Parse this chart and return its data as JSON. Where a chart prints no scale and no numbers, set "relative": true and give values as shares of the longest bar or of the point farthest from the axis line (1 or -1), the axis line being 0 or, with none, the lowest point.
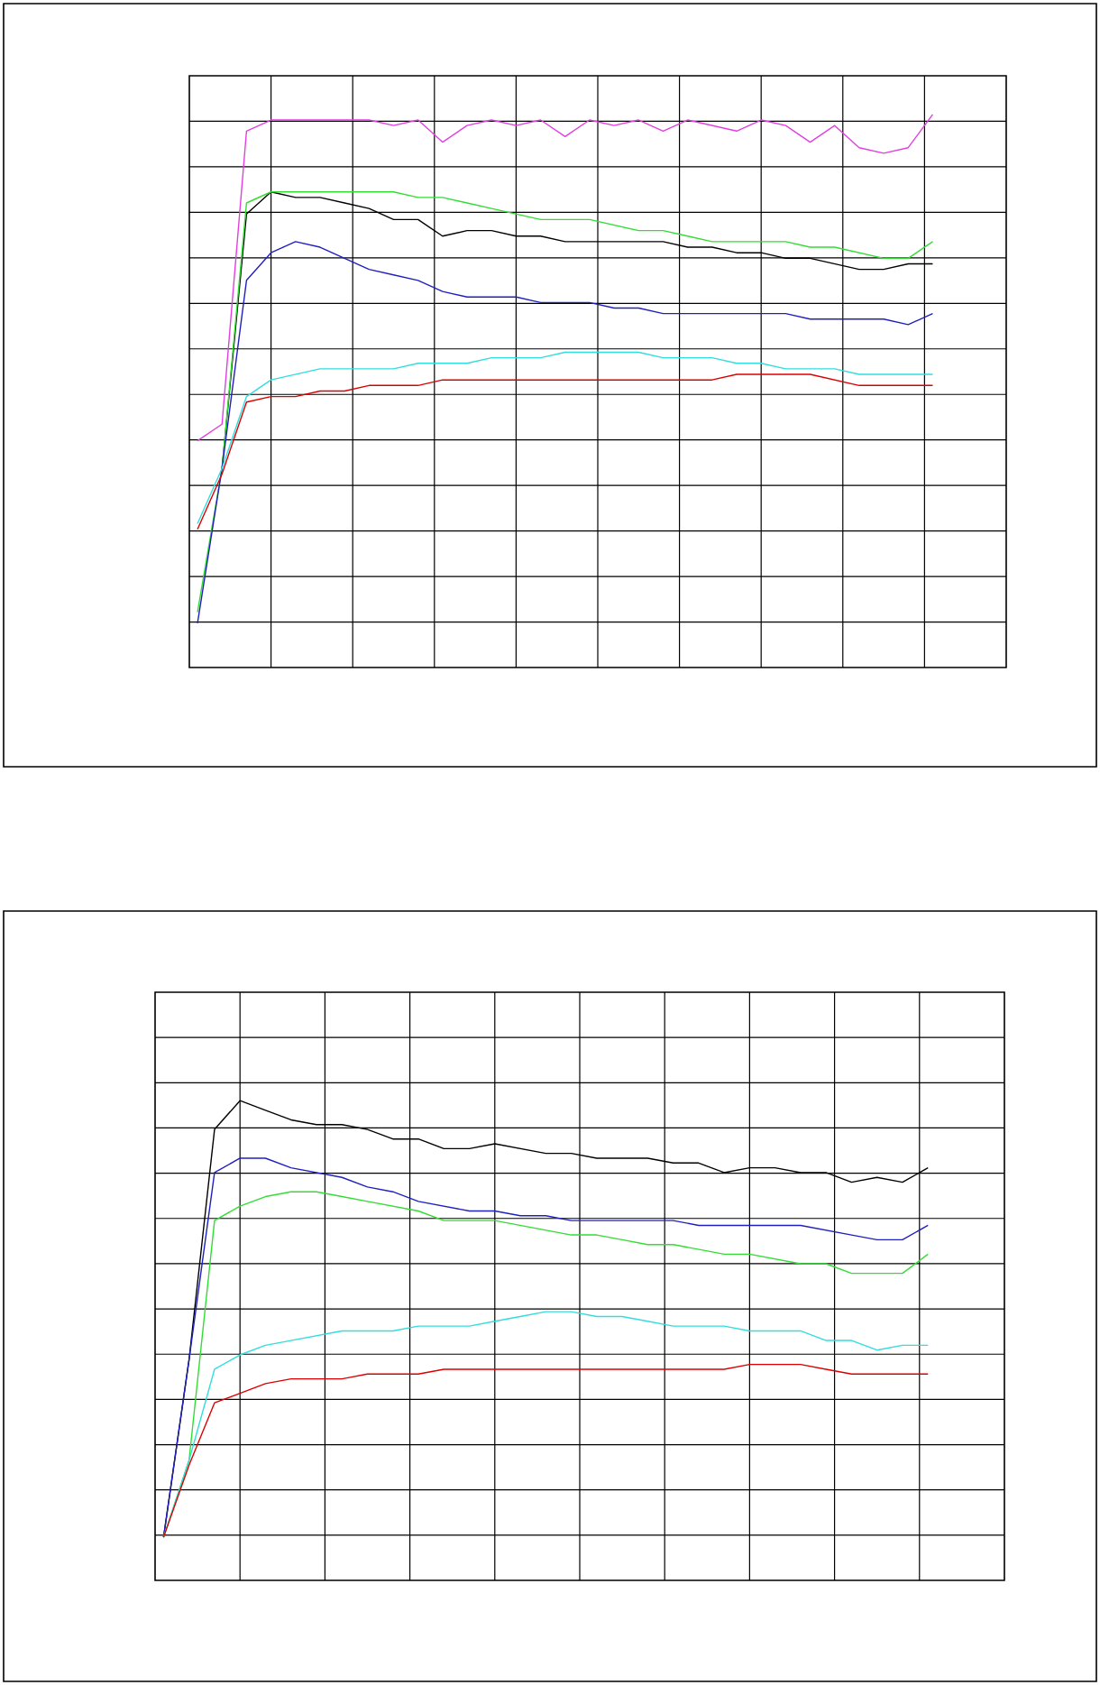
{
  "chart_data": [
    {
      "type": "line",
      "relative": true,
      "grid": true,
      "marker": "none",
      "line_style": "solid",
      "tick_labels": false,
      "categories": [
        null,
        null,
        null,
        null,
        null,
        null,
        null,
        null,
        null,
        null,
        null,
        null,
        null,
        null,
        null,
        null,
        null,
        null,
        null,
        null,
        null,
        null,
        null,
        null,
        null,
        null,
        null,
        null,
        null,
        null,
        null
      ],
      "series": [
        {
          "color": "#e040e0",
          "values": [
            0.41,
            0.44,
            0.97,
            0.99,
            0.99,
            0.99,
            0.99,
            0.99,
            0.98,
            0.99,
            0.95,
            0.98,
            0.99,
            0.98,
            0.99,
            0.96,
            0.99,
            0.98,
            0.99,
            0.97,
            0.99,
            0.98,
            0.97,
            0.99,
            0.98,
            0.95,
            0.98,
            0.94,
            0.93,
            0.94,
            1
          ]
        },
        {
          "color": "#000000",
          "values": [
            null,
            0.36,
            0.82,
            0.86,
            0.85,
            0.85,
            0.84,
            0.83,
            0.81,
            0.81,
            0.78,
            0.79,
            0.79,
            0.78,
            0.78,
            0.77,
            0.77,
            0.77,
            0.77,
            0.77,
            0.76,
            0.76,
            0.75,
            0.75,
            0.74,
            0.74,
            0.73,
            0.72,
            0.72,
            0.73,
            0.73
          ]
        },
        {
          "color": "#33dd33",
          "values": [
            0.1,
            0.36,
            0.84,
            0.86,
            0.86,
            0.86,
            0.86,
            0.86,
            0.86,
            0.85,
            0.85,
            0.84,
            0.83,
            0.82,
            0.81,
            0.81,
            0.81,
            0.8,
            0.79,
            0.79,
            0.78,
            0.77,
            0.77,
            0.77,
            0.77,
            0.76,
            0.76,
            0.75,
            0.74,
            0.74,
            0.77
          ]
        },
        {
          "color": "#2020c0",
          "values": [
            0.08,
            0.36,
            0.7,
            0.75,
            0.77,
            0.76,
            0.74,
            0.72,
            0.71,
            0.7,
            0.68,
            0.67,
            0.67,
            0.67,
            0.66,
            0.66,
            0.66,
            0.65,
            0.65,
            0.64,
            0.64,
            0.64,
            0.64,
            0.64,
            0.64,
            0.63,
            0.63,
            0.63,
            0.63,
            0.62,
            0.64
          ]
        },
        {
          "color": "#33dddd",
          "values": [
            0.26,
            0.36,
            0.49,
            0.52,
            0.53,
            0.54,
            0.54,
            0.54,
            0.54,
            0.55,
            0.55,
            0.55,
            0.56,
            0.56,
            0.56,
            0.57,
            0.57,
            0.57,
            0.57,
            0.56,
            0.56,
            0.56,
            0.55,
            0.55,
            0.54,
            0.54,
            0.54,
            0.53,
            0.53,
            0.53,
            0.53
          ]
        },
        {
          "color": "#dd0000",
          "values": [
            0.25,
            0.35,
            0.48,
            0.49,
            0.49,
            0.5,
            0.5,
            0.51,
            0.51,
            0.51,
            0.52,
            0.52,
            0.52,
            0.52,
            0.52,
            0.52,
            0.52,
            0.52,
            0.52,
            0.52,
            0.52,
            0.52,
            0.53,
            0.53,
            0.53,
            0.53,
            0.52,
            0.51,
            0.51,
            0.51,
            0.51
          ]
        }
      ]
    },
    {
      "type": "line",
      "relative": true,
      "grid": true,
      "marker": "none",
      "line_style": "solid",
      "tick_labels": false,
      "categories": [
        null,
        null,
        null,
        null,
        null,
        null,
        null,
        null,
        null,
        null,
        null,
        null,
        null,
        null,
        null,
        null,
        null,
        null,
        null,
        null,
        null,
        null,
        null,
        null,
        null,
        null,
        null,
        null,
        null,
        null,
        null
      ],
      "series": [
        {
          "color": "#000000",
          "values": [
            0.09,
            0.46,
            0.94,
            1,
            0.98,
            0.96,
            0.95,
            0.95,
            0.94,
            0.92,
            0.92,
            0.9,
            0.9,
            0.91,
            0.9,
            0.89,
            0.89,
            0.88,
            0.88,
            0.88,
            0.87,
            0.87,
            0.85,
            0.86,
            0.86,
            0.85,
            0.85,
            0.83,
            0.84,
            0.83,
            0.86
          ]
        },
        {
          "color": "#2020c0",
          "values": [
            0.09,
            0.46,
            0.85,
            0.88,
            0.88,
            0.86,
            0.85,
            0.84,
            0.82,
            0.81,
            0.79,
            0.78,
            0.77,
            0.77,
            0.76,
            0.76,
            0.75,
            0.75,
            0.75,
            0.75,
            0.75,
            0.74,
            0.74,
            0.74,
            0.74,
            0.74,
            0.73,
            0.72,
            0.71,
            0.71,
            0.74
          ]
        },
        {
          "color": "#33dd33",
          "values": [
            0.09,
            0.25,
            0.75,
            0.78,
            0.8,
            0.81,
            0.81,
            0.8,
            0.79,
            0.78,
            0.77,
            0.75,
            0.75,
            0.75,
            0.74,
            0.73,
            0.72,
            0.72,
            0.71,
            0.7,
            0.7,
            0.69,
            0.68,
            0.68,
            0.67,
            0.66,
            0.66,
            0.64,
            0.64,
            0.64,
            0.68
          ]
        },
        {
          "color": "#33dddd",
          "values": [
            0.09,
            0.25,
            0.44,
            0.47,
            0.49,
            0.5,
            0.51,
            0.52,
            0.52,
            0.52,
            0.53,
            0.53,
            0.53,
            0.54,
            0.55,
            0.56,
            0.56,
            0.55,
            0.55,
            0.54,
            0.53,
            0.53,
            0.53,
            0.52,
            0.52,
            0.52,
            0.5,
            0.5,
            0.48,
            0.49,
            0.49
          ]
        },
        {
          "color": "#dd0000",
          "values": [
            0.09,
            0.24,
            0.37,
            0.39,
            0.41,
            0.42,
            0.42,
            0.42,
            0.43,
            0.43,
            0.43,
            0.44,
            0.44,
            0.44,
            0.44,
            0.44,
            0.44,
            0.44,
            0.44,
            0.44,
            0.44,
            0.44,
            0.44,
            0.45,
            0.45,
            0.45,
            0.44,
            0.43,
            0.43,
            0.43,
            0.43
          ]
        }
      ]
    }
  ]
}
